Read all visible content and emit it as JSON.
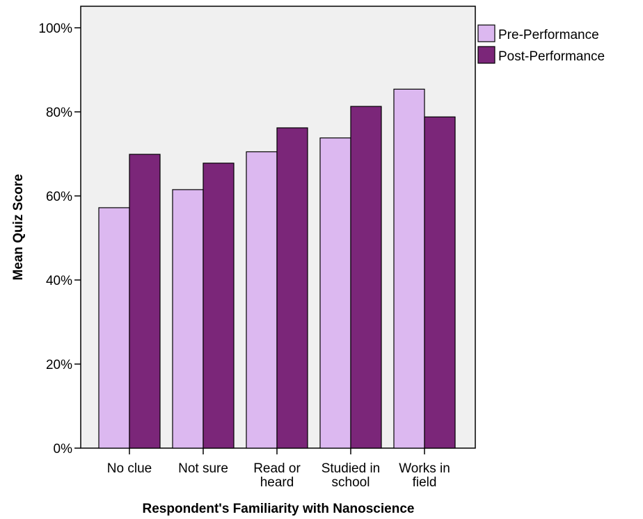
{
  "chart_data": {
    "type": "bar",
    "title": "",
    "xlabel": "Respondent's Familiarity with Nanoscience",
    "ylabel": "Mean Quiz Score",
    "ylim": [
      0,
      100
    ],
    "yticks": [
      "0%",
      "20%",
      "40%",
      "60%",
      "80%",
      "100%"
    ],
    "ytick_values": [
      0,
      20,
      40,
      60,
      80,
      100
    ],
    "categories": [
      [
        "No clue"
      ],
      [
        "Not sure"
      ],
      [
        "Read or",
        "heard"
      ],
      [
        "Studied in",
        "school"
      ],
      [
        "Works in",
        "field"
      ]
    ],
    "series": [
      {
        "name": "Pre-Performance",
        "color": "#dcb8f0",
        "values": [
          57.2,
          61.5,
          70.5,
          73.8,
          85.4
        ]
      },
      {
        "name": "Post-Performance",
        "color": "#7b2679",
        "values": [
          69.9,
          67.8,
          76.2,
          81.3,
          78.8
        ]
      }
    ],
    "plot_background": "#f0f0f0",
    "grid": false,
    "legend_position": "right"
  }
}
